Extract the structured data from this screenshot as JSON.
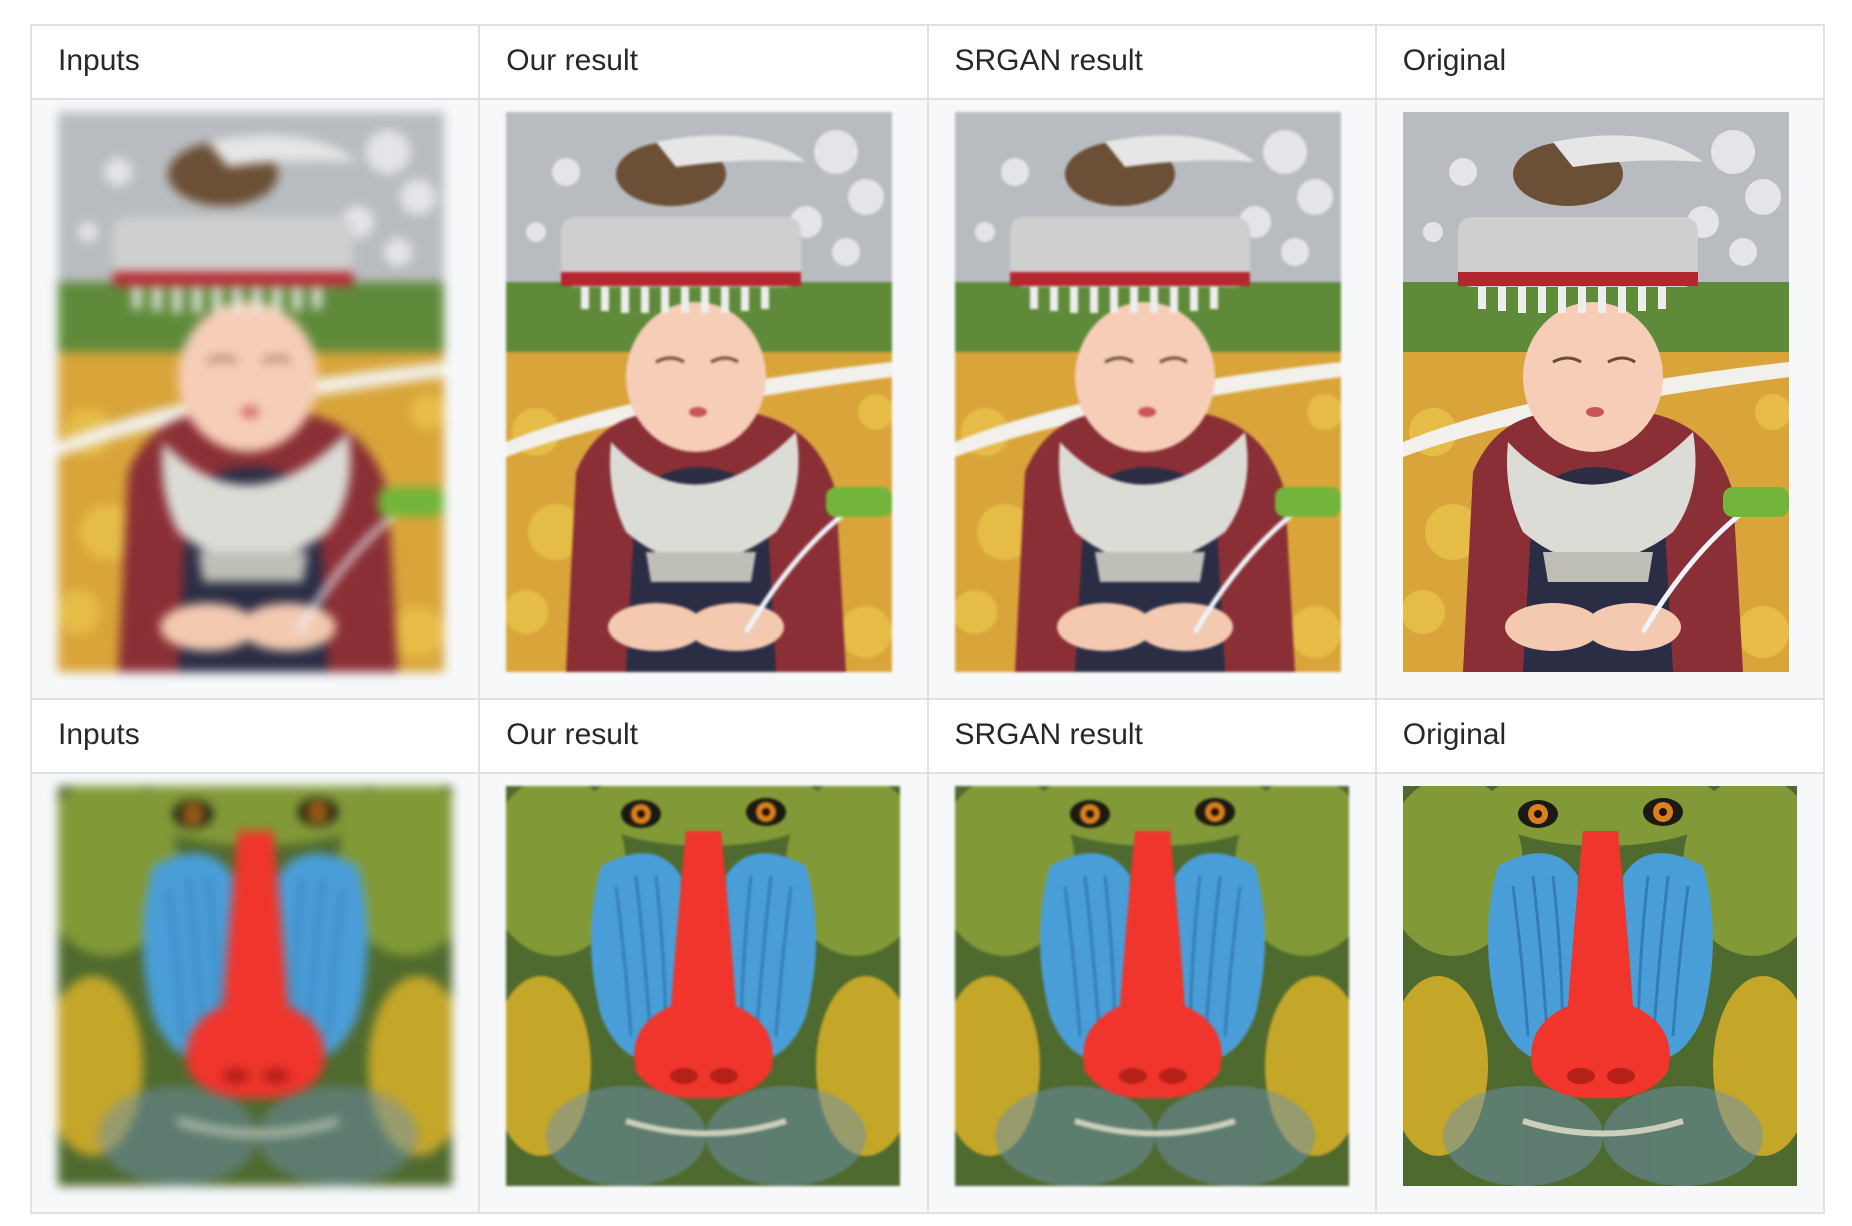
{
  "rows": [
    {
      "headers": [
        "Inputs",
        "Our result",
        "SRGAN result",
        "Original"
      ],
      "subject": "illustrated girl in silver headdress"
    },
    {
      "headers": [
        "Inputs",
        "Our result",
        "SRGAN result",
        "Original"
      ],
      "subject": "mandrill face"
    }
  ],
  "colors": {
    "border": "#dfe2e5",
    "image_row_bg": "#f6f8fa",
    "text": "#24292e"
  }
}
